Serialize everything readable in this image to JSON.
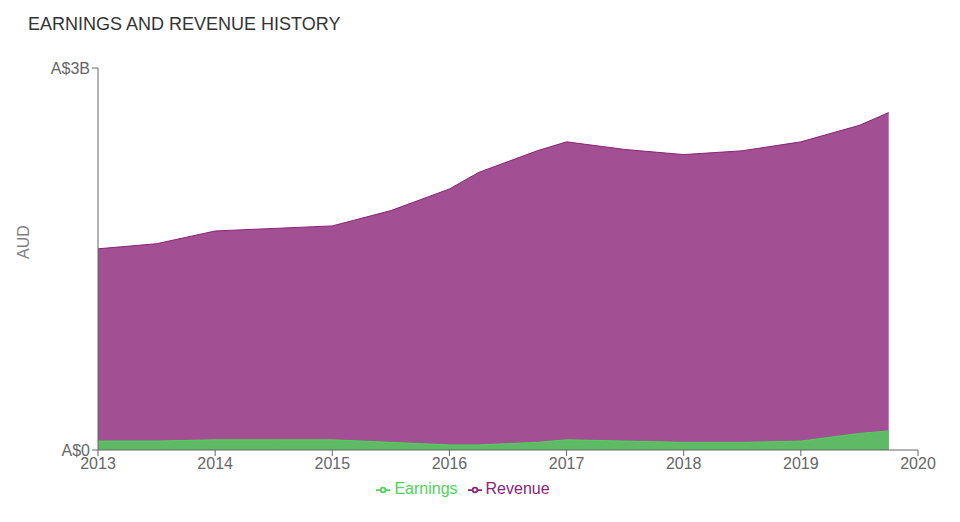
{
  "chart_data": {
    "type": "area",
    "title": "EARNINGS AND REVENUE HISTORY",
    "y_label": "AUD",
    "x": [
      2013,
      2013.5,
      2014,
      2014.5,
      2015,
      2015.5,
      2016,
      2016.25,
      2016.75,
      2017,
      2017.5,
      2018,
      2018.5,
      2019,
      2019.5,
      2019.75
    ],
    "series": [
      {
        "name": "Revenue",
        "color": "#8b2378",
        "values": [
          1.58,
          1.62,
          1.72,
          1.74,
          1.76,
          1.88,
          2.05,
          2.18,
          2.35,
          2.42,
          2.36,
          2.32,
          2.35,
          2.42,
          2.55,
          2.65
        ]
      },
      {
        "name": "Earnings",
        "color": "#4fd45a",
        "values": [
          0.07,
          0.07,
          0.08,
          0.08,
          0.08,
          0.06,
          0.04,
          0.04,
          0.06,
          0.08,
          0.07,
          0.06,
          0.06,
          0.07,
          0.13,
          0.15
        ]
      }
    ],
    "xlim": [
      2013,
      2020
    ],
    "xticks": [
      2013,
      2014,
      2015,
      2016,
      2017,
      2018,
      2019,
      2020
    ],
    "ylim": [
      0,
      3.0
    ],
    "yticks": [
      {
        "value": 0,
        "label": "A$0"
      },
      {
        "value": 3.0,
        "label": "A$3B"
      }
    ],
    "grid": false,
    "legend": "bottom"
  }
}
